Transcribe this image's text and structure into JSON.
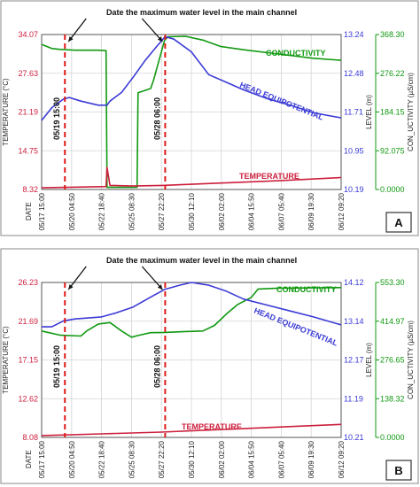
{
  "chart_data": [
    {
      "panel": "A",
      "type": "line",
      "annotation": "Date the maximum water level in the main channel",
      "event_lines": [
        {
          "x": "2011-05-19T15:00",
          "label": "05/19 15:00"
        },
        {
          "x": "2011-05-28T06:00",
          "label": "05/28 06:00"
        }
      ],
      "xlabel": "DATE",
      "x_ticks": [
        "05/17 15:00",
        "05/20 04:50",
        "05/22 18:40",
        "05/25 08:30",
        "05/27 22:20",
        "05/30 12:10",
        "06/02 02:00",
        "06/04 15:50",
        "06/07 05:40",
        "06/09 19:30",
        "06/12 09:20"
      ],
      "axes": {
        "left": {
          "label": "TEMPERATURE (°C)",
          "ticks": [
            "34.07",
            "27.63",
            "21.19",
            "14.75",
            "8.32"
          ],
          "ylim": [
            8.32,
            34.07
          ],
          "color": "#cc1f3c"
        },
        "right1": {
          "label": "LEVEL (m)",
          "ticks": [
            "13.24",
            "12.48",
            "11.71",
            "10.95",
            "10.19"
          ],
          "ylim": [
            10.19,
            13.24
          ],
          "color": "#3a3ad6"
        },
        "right2": {
          "label": "CON_UCTIVITY (µS/cm)",
          "ticks": [
            "368.30",
            "276.22",
            "184.15",
            "92.075",
            "0.0000"
          ],
          "ylim": [
            0,
            368.3
          ],
          "color": "#119911"
        }
      },
      "series": [
        {
          "name": "CONDUCTIVITY",
          "axis": "right2",
          "color": "#119911",
          "points": [
            [
              "05/17 15:00",
              345
            ],
            [
              "05/18 12:00",
              335
            ],
            [
              "05/19 06:00",
              333
            ],
            [
              "05/20 12:00",
              331
            ],
            [
              "05/22 12:00",
              331
            ],
            [
              "05/23 04:00",
              330
            ],
            [
              "05/23 06:00",
              5
            ],
            [
              "05/25 20:00",
              5
            ],
            [
              "05/25 22:00",
              230
            ],
            [
              "05/27 00:00",
              240
            ],
            [
              "05/27 06:00",
              260
            ],
            [
              "05/28 05:00",
              355
            ],
            [
              "05/28 12:00",
              363
            ],
            [
              "05/30 00:00",
              364
            ],
            [
              "05/31 12:00",
              355
            ],
            [
              "06/02 00:00",
              340
            ],
            [
              "06/04 00:00",
              332
            ],
            [
              "06/07 00:00",
              322
            ],
            [
              "06/10 00:00",
              312
            ],
            [
              "06/12 09:20",
              307
            ]
          ]
        },
        {
          "name": "HEAD EQUIPOTENTIAL",
          "axis": "right1",
          "color": "#3a3ad6",
          "points": [
            [
              "05/17 15:00",
              11.55
            ],
            [
              "05/18 12:00",
              11.8
            ],
            [
              "05/19 12:00",
              11.97
            ],
            [
              "05/20 00:00",
              12.0
            ],
            [
              "05/21 00:00",
              11.93
            ],
            [
              "05/22 12:00",
              11.85
            ],
            [
              "05/23 06:00",
              11.85
            ],
            [
              "05/23 12:00",
              11.93
            ],
            [
              "05/24 12:00",
              12.1
            ],
            [
              "05/25 12:00",
              12.4
            ],
            [
              "05/26 12:00",
              12.72
            ],
            [
              "05/27 12:00",
              13.0
            ],
            [
              "05/28 06:00",
              13.2
            ],
            [
              "05/29 00:00",
              13.15
            ],
            [
              "05/30 12:00",
              12.9
            ],
            [
              "06/01 00:00",
              12.45
            ],
            [
              "06/02 12:00",
              12.3
            ],
            [
              "06/04 00:00",
              12.15
            ],
            [
              "06/06 00:00",
              11.98
            ],
            [
              "06/08 00:00",
              11.85
            ],
            [
              "06/10 00:00",
              11.7
            ],
            [
              "06/12 09:20",
              11.6
            ]
          ]
        },
        {
          "name": "TEMPERATURE",
          "axis": "left",
          "color": "#cc1f3c",
          "points": [
            [
              "05/17 15:00",
              8.6
            ],
            [
              "05/20 04:50",
              8.7
            ],
            [
              "05/23 04:00",
              8.8
            ],
            [
              "05/23 06:00",
              12.0
            ],
            [
              "05/23 12:00",
              9.0
            ],
            [
              "05/25 08:30",
              8.9
            ],
            [
              "05/28 00:00",
              9.0
            ],
            [
              "06/02 02:00",
              9.4
            ],
            [
              "06/07 05:40",
              9.8
            ],
            [
              "06/12 09:20",
              10.3
            ]
          ]
        }
      ],
      "grid": true,
      "badge": "A"
    },
    {
      "panel": "B",
      "type": "line",
      "annotation": "Date the maximum water level in the main channel",
      "event_lines": [
        {
          "x": "2011-05-19T15:00",
          "label": "05/19 15:00"
        },
        {
          "x": "2011-05-28T06:00",
          "label": "05/28 06:00"
        }
      ],
      "xlabel": "DATE",
      "x_ticks": [
        "05/17 15:00",
        "05/20 04:50",
        "05/22 18:40",
        "05/25 08:30",
        "05/27 22:20",
        "05/30 12:10",
        "06/02 02:00",
        "06/04 15:50",
        "06/07 05:40",
        "06/09 19:30",
        "06/12 09:20"
      ],
      "axes": {
        "left": {
          "label": "TEMPERATURE (°C)",
          "ticks": [
            "26.23",
            "21.69",
            "17.15",
            "12.62",
            "8.08"
          ],
          "ylim": [
            8.08,
            26.23
          ],
          "color": "#cc1f3c"
        },
        "right1": {
          "label": "LEVEL (m)",
          "ticks": [
            "14.12",
            "13.14",
            "12.17",
            "11.19",
            "10.21"
          ],
          "ylim": [
            10.21,
            14.12
          ],
          "color": "#3a3ad6"
        },
        "right2": {
          "label": "CON_UCTIVITY (µS/cm)",
          "ticks": [
            "553.30",
            "414.97",
            "276.65",
            "138.32",
            "0.0000"
          ],
          "ylim": [
            0,
            553.3
          ],
          "color": "#119911"
        }
      },
      "series": [
        {
          "name": "CONDUCTIVITY",
          "axis": "right2",
          "color": "#119911",
          "points": [
            [
              "05/17 15:00",
              380
            ],
            [
              "05/19 06:00",
              365
            ],
            [
              "05/21 00:00",
              362
            ],
            [
              "05/21 12:00",
              380
            ],
            [
              "05/22 12:00",
              405
            ],
            [
              "05/23 12:00",
              410
            ],
            [
              "05/24 12:00",
              380
            ],
            [
              "05/25 08:30",
              358
            ],
            [
              "05/26 00:00",
              365
            ],
            [
              "05/27 00:00",
              374
            ],
            [
              "05/28 06:00",
              375
            ],
            [
              "05/30 00:00",
              378
            ],
            [
              "05/31 12:00",
              380
            ],
            [
              "06/01 12:00",
              400
            ],
            [
              "06/02 12:00",
              440
            ],
            [
              "06/03 12:00",
              475
            ],
            [
              "06/04 15:50",
              500
            ],
            [
              "06/05 06:00",
              530
            ],
            [
              "06/07 00:00",
              533
            ],
            [
              "06/10 00:00",
              534
            ],
            [
              "06/12 09:20",
              535
            ]
          ]
        },
        {
          "name": "HEAD EQUIPOTENTIAL",
          "axis": "right1",
          "color": "#3a3ad6",
          "points": [
            [
              "05/17 15:00",
              13.0
            ],
            [
              "05/18 12:00",
              13.0
            ],
            [
              "05/19 12:00",
              13.15
            ],
            [
              "05/20 12:00",
              13.2
            ],
            [
              "05/22 18:40",
              13.25
            ],
            [
              "05/24 00:00",
              13.35
            ],
            [
              "05/25 12:00",
              13.5
            ],
            [
              "05/27 00:00",
              13.75
            ],
            [
              "05/28 06:00",
              13.95
            ],
            [
              "05/29 12:00",
              14.05
            ],
            [
              "05/30 12:00",
              14.12
            ],
            [
              "06/01 00:00",
              14.05
            ],
            [
              "06/02 12:00",
              13.9
            ],
            [
              "06/04 00:00",
              13.7
            ],
            [
              "06/06 00:00",
              13.55
            ],
            [
              "06/08 00:00",
              13.4
            ],
            [
              "06/10 00:00",
              13.25
            ],
            [
              "06/12 09:20",
              13.05
            ]
          ]
        },
        {
          "name": "TEMPERATURE",
          "axis": "left",
          "color": "#cc1f3c",
          "points": [
            [
              "05/17 15:00",
              8.3
            ],
            [
              "05/22 18:40",
              8.5
            ],
            [
              "05/27 22:20",
              8.7
            ],
            [
              "06/02 02:00",
              9.0
            ],
            [
              "06/07 05:40",
              9.3
            ],
            [
              "06/12 09:20",
              9.6
            ]
          ]
        }
      ],
      "grid": true,
      "badge": "B"
    }
  ]
}
